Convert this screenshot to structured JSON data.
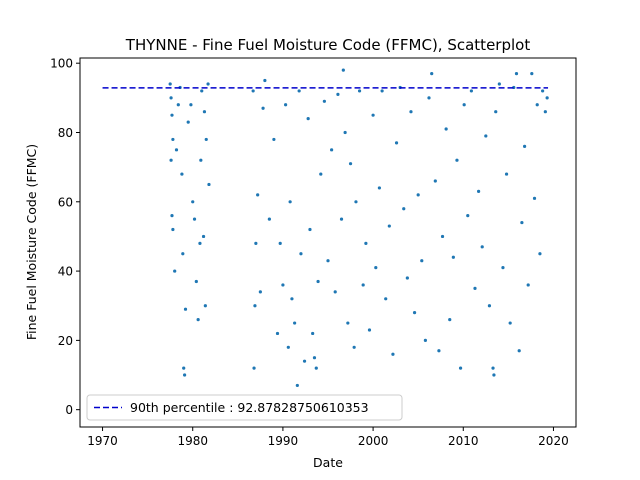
{
  "chart_data": {
    "type": "scatter",
    "title": "THYNNE - Fine Fuel Moisture Code (FFMC), Scatterplot",
    "xlabel": "Date",
    "ylabel": "Fine Fuel Moisture Code (FFMC)",
    "xlim": [
      1967.5,
      2022.5
    ],
    "ylim": [
      -5,
      101.5
    ],
    "xticks": [
      1970,
      1980,
      1990,
      2000,
      2010,
      2020
    ],
    "yticks": [
      0,
      20,
      40,
      60,
      80,
      100
    ],
    "grid": false,
    "legend_placement": "lower-left",
    "threshold": {
      "label": "90th percentile : 92.87828750610353",
      "value": 92.87828750610353,
      "x_range": [
        1970,
        2019.4
      ],
      "color": "#0000cc",
      "style": "dashed"
    },
    "series": [
      {
        "color": "#1f77b4",
        "points": [
          [
            1977.5,
            94
          ],
          [
            1977.6,
            90
          ],
          [
            1977.7,
            85
          ],
          [
            1977.8,
            78
          ],
          [
            1977.6,
            72
          ],
          [
            1977.7,
            56
          ],
          [
            1977.8,
            52
          ],
          [
            1978.0,
            40
          ],
          [
            1978.2,
            75
          ],
          [
            1978.4,
            88
          ],
          [
            1978.6,
            93
          ],
          [
            1978.8,
            68
          ],
          [
            1978.9,
            45
          ],
          [
            1979.0,
            12
          ],
          [
            1979.1,
            10
          ],
          [
            1979.2,
            29
          ],
          [
            1979.5,
            83
          ],
          [
            1979.8,
            88
          ],
          [
            1980.0,
            60
          ],
          [
            1980.2,
            55
          ],
          [
            1980.4,
            37
          ],
          [
            1980.6,
            26
          ],
          [
            1980.8,
            48
          ],
          [
            1981.0,
            92
          ],
          [
            1981.3,
            86
          ],
          [
            1981.4,
            30
          ],
          [
            1981.5,
            78
          ],
          [
            1981.7,
            94
          ],
          [
            1981.8,
            65
          ],
          [
            1981.2,
            50
          ],
          [
            1980.9,
            72
          ],
          [
            1986.7,
            92
          ],
          [
            1986.8,
            12
          ],
          [
            1986.9,
            30
          ],
          [
            1987.0,
            48
          ],
          [
            1987.2,
            62
          ],
          [
            1987.5,
            34
          ],
          [
            1987.8,
            87
          ],
          [
            1988.0,
            95
          ],
          [
            1988.5,
            55
          ],
          [
            1989.0,
            78
          ],
          [
            1989.4,
            22
          ],
          [
            1989.7,
            48
          ],
          [
            1990.0,
            36
          ],
          [
            1990.3,
            88
          ],
          [
            1990.6,
            18
          ],
          [
            1990.8,
            60
          ],
          [
            1991.0,
            32
          ],
          [
            1991.3,
            25
          ],
          [
            1991.6,
            7
          ],
          [
            1991.8,
            92
          ],
          [
            1992.0,
            45
          ],
          [
            1992.4,
            14
          ],
          [
            1992.8,
            84
          ],
          [
            1993.0,
            52
          ],
          [
            1993.3,
            22
          ],
          [
            1993.5,
            15
          ],
          [
            1993.7,
            12
          ],
          [
            1993.9,
            37
          ],
          [
            1994.2,
            68
          ],
          [
            1994.6,
            89
          ],
          [
            1995.0,
            43
          ],
          [
            1995.4,
            75
          ],
          [
            1995.8,
            34
          ],
          [
            1996.1,
            91
          ],
          [
            1996.5,
            55
          ],
          [
            1996.7,
            98
          ],
          [
            1996.9,
            80
          ],
          [
            1997.2,
            25
          ],
          [
            1997.5,
            71
          ],
          [
            1997.9,
            18
          ],
          [
            1998.1,
            60
          ],
          [
            1998.5,
            92
          ],
          [
            1998.9,
            36
          ],
          [
            1999.2,
            48
          ],
          [
            1999.6,
            23
          ],
          [
            2000.0,
            85
          ],
          [
            2000.3,
            41
          ],
          [
            2000.7,
            64
          ],
          [
            2001.0,
            92
          ],
          [
            2001.4,
            32
          ],
          [
            2001.8,
            53
          ],
          [
            2002.2,
            16
          ],
          [
            2002.6,
            77
          ],
          [
            2003.0,
            93
          ],
          [
            2003.4,
            58
          ],
          [
            2003.8,
            38
          ],
          [
            2004.2,
            86
          ],
          [
            2004.6,
            28
          ],
          [
            2005.0,
            62
          ],
          [
            2005.4,
            43
          ],
          [
            2005.8,
            20
          ],
          [
            2006.2,
            90
          ],
          [
            2006.5,
            97
          ],
          [
            2006.9,
            66
          ],
          [
            2007.3,
            17
          ],
          [
            2007.7,
            50
          ],
          [
            2008.1,
            81
          ],
          [
            2008.5,
            26
          ],
          [
            2008.9,
            44
          ],
          [
            2009.3,
            72
          ],
          [
            2009.7,
            12
          ],
          [
            2010.1,
            88
          ],
          [
            2010.5,
            56
          ],
          [
            2010.9,
            92
          ],
          [
            2011.3,
            35
          ],
          [
            2011.7,
            63
          ],
          [
            2012.1,
            47
          ],
          [
            2012.5,
            79
          ],
          [
            2012.9,
            30
          ],
          [
            2013.3,
            12
          ],
          [
            2013.4,
            10
          ],
          [
            2013.6,
            86
          ],
          [
            2014.0,
            94
          ],
          [
            2014.4,
            41
          ],
          [
            2014.8,
            68
          ],
          [
            2015.2,
            25
          ],
          [
            2015.6,
            93
          ],
          [
            2015.9,
            97
          ],
          [
            2016.2,
            17
          ],
          [
            2016.5,
            54
          ],
          [
            2016.8,
            76
          ],
          [
            2017.2,
            36
          ],
          [
            2017.6,
            97
          ],
          [
            2017.9,
            61
          ],
          [
            2018.2,
            88
          ],
          [
            2018.5,
            45
          ],
          [
            2018.8,
            92
          ],
          [
            2019.1,
            86
          ],
          [
            2019.3,
            90
          ]
        ]
      }
    ]
  }
}
